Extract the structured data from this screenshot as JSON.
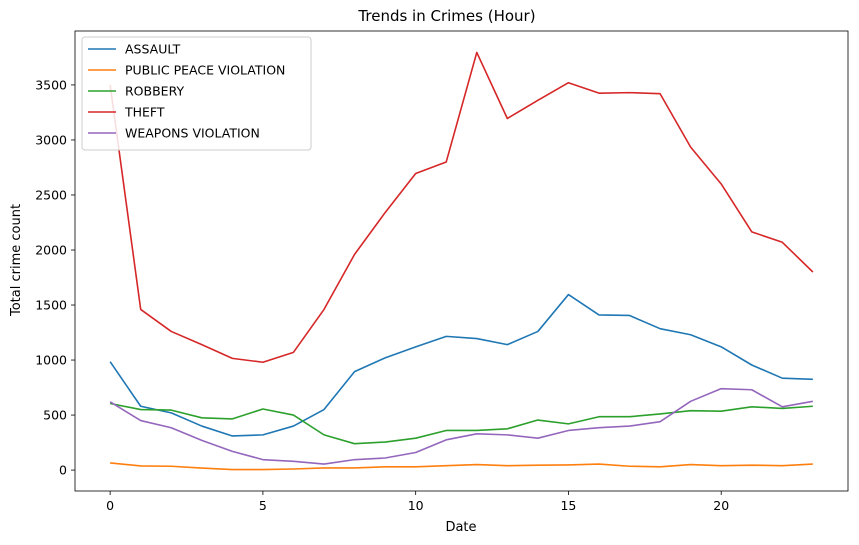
{
  "chart_data": {
    "type": "line",
    "title": "Trends in Crimes (Hour)",
    "xlabel": "Date",
    "ylabel": "Total crime count",
    "xlim": [
      -1.15,
      24.15
    ],
    "ylim": [
      -190,
      3990
    ],
    "xticks": [
      0,
      5,
      10,
      15,
      20
    ],
    "yticks": [
      0,
      500,
      1000,
      1500,
      2000,
      2500,
      3000,
      3500
    ],
    "grid": false,
    "legend": "top-left",
    "x": [
      0,
      1,
      2,
      3,
      4,
      5,
      6,
      7,
      8,
      9,
      10,
      11,
      12,
      13,
      14,
      15,
      16,
      17,
      18,
      19,
      20,
      21,
      22,
      23
    ],
    "series": [
      {
        "name": "ASSAULT",
        "color": "#1f77b4",
        "values": [
          985,
          580,
          520,
          400,
          310,
          320,
          400,
          550,
          895,
          1020,
          1120,
          1215,
          1195,
          1140,
          1260,
          1595,
          1410,
          1405,
          1285,
          1230,
          1120,
          955,
          835,
          825
        ]
      },
      {
        "name": "PUBLIC PEACE VIOLATION",
        "color": "#ff7f0e",
        "values": [
          65,
          38,
          35,
          18,
          5,
          5,
          10,
          20,
          20,
          30,
          30,
          40,
          50,
          40,
          45,
          47,
          55,
          35,
          30,
          50,
          40,
          45,
          40,
          55
        ]
      },
      {
        "name": "ROBBERY",
        "color": "#2ca02c",
        "values": [
          605,
          550,
          545,
          475,
          465,
          555,
          500,
          320,
          240,
          255,
          290,
          360,
          360,
          375,
          455,
          420,
          485,
          485,
          510,
          540,
          535,
          575,
          560,
          580
        ]
      },
      {
        "name": "THEFT",
        "color": "#d62728",
        "values": [
          3500,
          1460,
          1260,
          1140,
          1015,
          980,
          1070,
          1460,
          1960,
          2340,
          2695,
          2800,
          3795,
          3195,
          3360,
          3520,
          3425,
          3430,
          3420,
          2935,
          2600,
          2165,
          2070,
          1800
        ]
      },
      {
        "name": "WEAPONS VIOLATION",
        "color": "#9467bd",
        "values": [
          620,
          450,
          385,
          270,
          170,
          95,
          80,
          55,
          95,
          110,
          160,
          275,
          330,
          320,
          290,
          360,
          385,
          400,
          440,
          625,
          740,
          730,
          575,
          625
        ]
      }
    ]
  }
}
